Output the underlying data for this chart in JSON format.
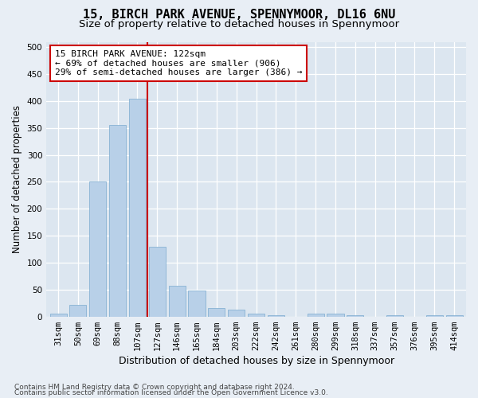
{
  "title1": "15, BIRCH PARK AVENUE, SPENNYMOOR, DL16 6NU",
  "title2": "Size of property relative to detached houses in Spennymoor",
  "xlabel": "Distribution of detached houses by size in Spennymoor",
  "ylabel": "Number of detached properties",
  "categories": [
    "31sqm",
    "50sqm",
    "69sqm",
    "88sqm",
    "107sqm",
    "127sqm",
    "146sqm",
    "165sqm",
    "184sqm",
    "203sqm",
    "222sqm",
    "242sqm",
    "261sqm",
    "280sqm",
    "299sqm",
    "318sqm",
    "337sqm",
    "357sqm",
    "376sqm",
    "395sqm",
    "414sqm"
  ],
  "values": [
    5,
    22,
    250,
    355,
    405,
    130,
    57,
    49,
    16,
    13,
    5,
    2,
    0,
    6,
    5,
    2,
    0,
    2,
    0,
    3,
    2
  ],
  "bar_color": "#b8d0e8",
  "bar_edge_color": "#7aaacf",
  "vline_color": "#cc0000",
  "vline_index": 4.5,
  "annotation_line1": "15 BIRCH PARK AVENUE: 122sqm",
  "annotation_line2": "← 69% of detached houses are smaller (906)",
  "annotation_line3": "29% of semi-detached houses are larger (386) →",
  "annotation_box_facecolor": "#ffffff",
  "annotation_box_edgecolor": "#cc0000",
  "ylim_max": 510,
  "yticks": [
    0,
    50,
    100,
    150,
    200,
    250,
    300,
    350,
    400,
    450,
    500
  ],
  "footer1": "Contains HM Land Registry data © Crown copyright and database right 2024.",
  "footer2": "Contains public sector information licensed under the Open Government Licence v3.0.",
  "fig_bg": "#e8eef5",
  "plot_bg": "#dce6f0",
  "grid_color": "#ffffff",
  "title1_fontsize": 11,
  "title2_fontsize": 9.5,
  "xlabel_fontsize": 9,
  "ylabel_fontsize": 8.5,
  "tick_fontsize": 7.5,
  "annotation_fontsize": 8,
  "footer_fontsize": 6.5
}
